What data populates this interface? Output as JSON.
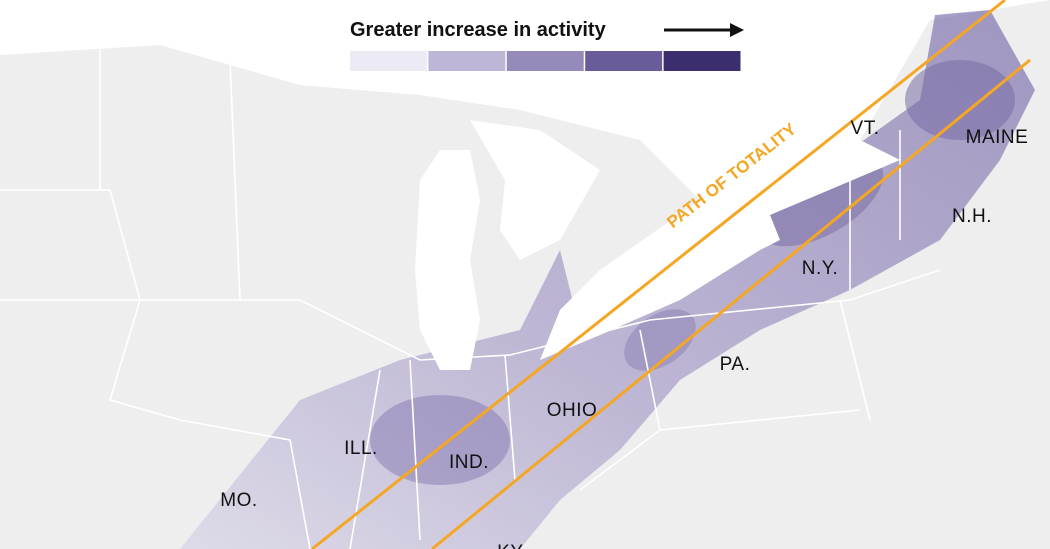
{
  "legend": {
    "title": "Greater increase in activity",
    "colors": [
      "#ecebf5",
      "#bdb6d6",
      "#958ab9",
      "#6a5c9a",
      "#3b2d6e"
    ]
  },
  "path_label": "PATH OF TOTALITY",
  "states": [
    "VT.",
    "MAINE",
    "N.H.",
    "N.Y.",
    "PA.",
    "OHIO",
    "ILL.",
    "IND.",
    "MO.",
    "KY."
  ]
}
